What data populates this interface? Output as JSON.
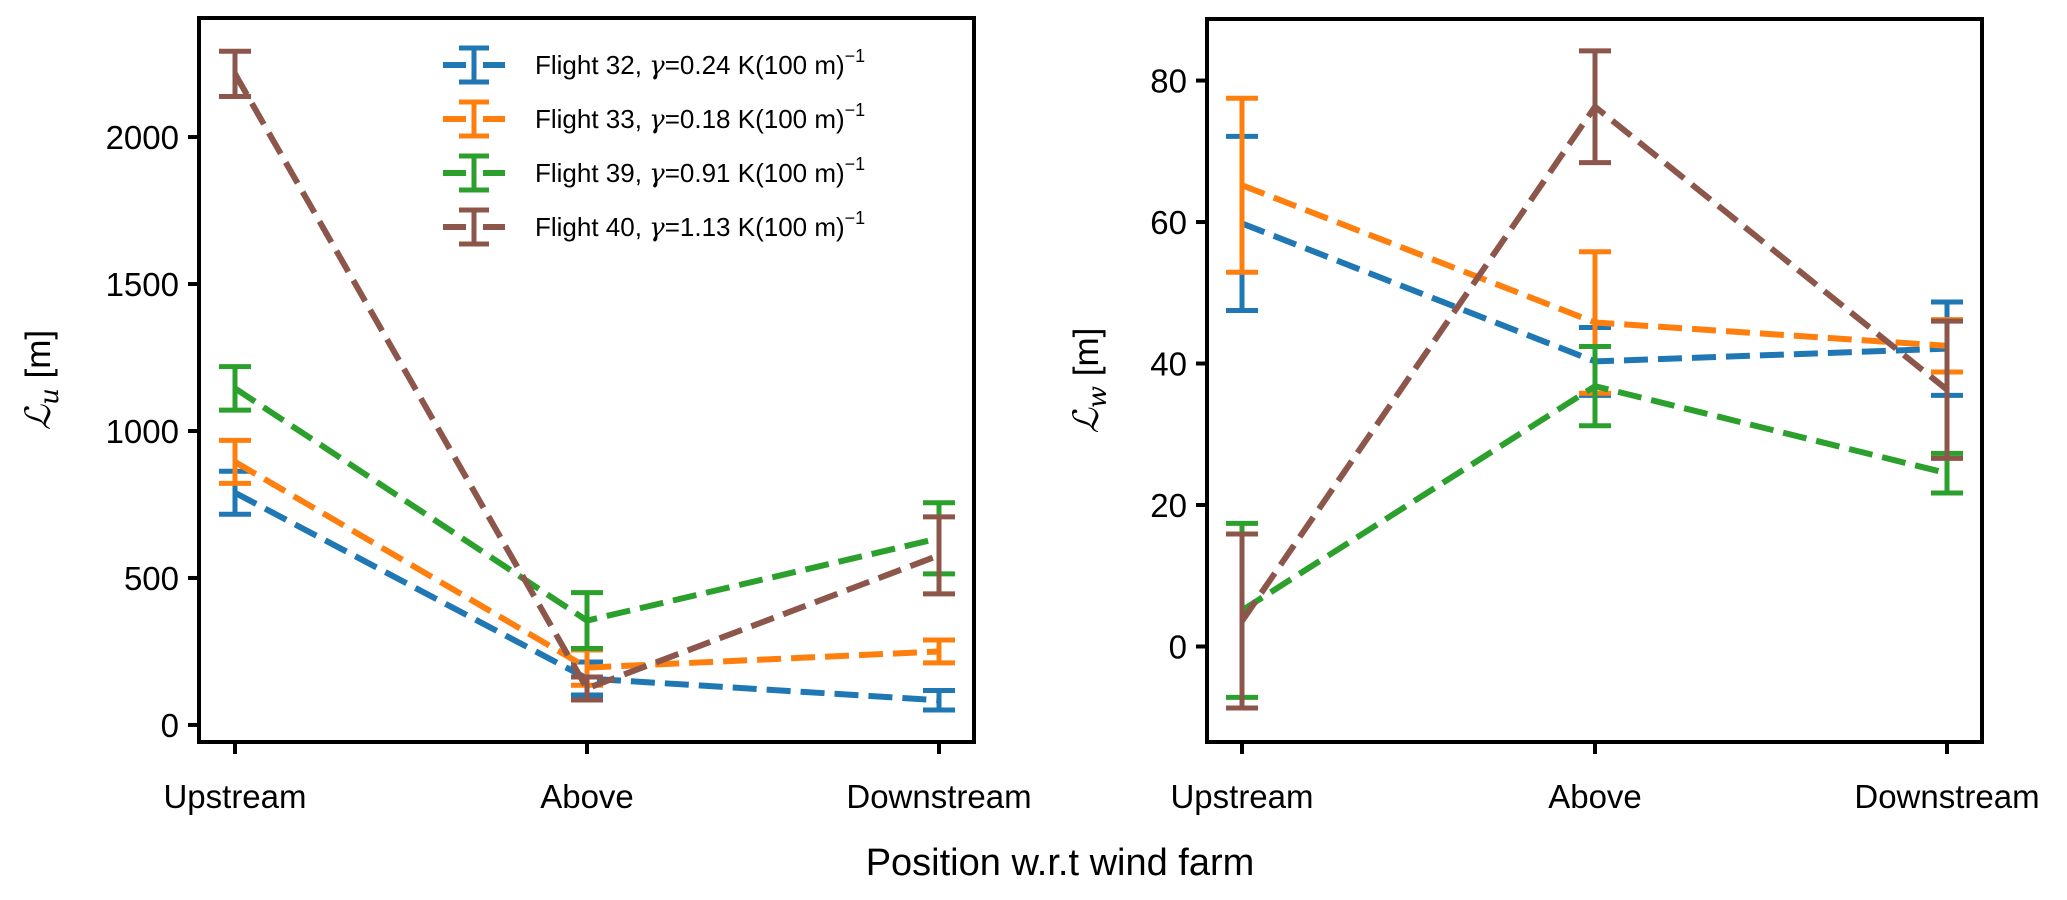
{
  "chart_data": [
    {
      "type": "line",
      "panel": "left",
      "ylabel_symbol": "ℒ",
      "ylabel_sub": "u",
      "ylabel_unit": "[m]",
      "xlabel": "",
      "categories": [
        "Upstream",
        "Above",
        "Downstream"
      ],
      "ylim": [
        -58,
        2405
      ],
      "yticks": [
        0,
        500,
        1000,
        1500,
        2000
      ],
      "ytick_labels": [
        "0",
        "500",
        "1000",
        "1500",
        "2000"
      ],
      "grid": false,
      "legend": "top-right",
      "series": [
        {
          "name": "Flight 32",
          "gamma": "0.24",
          "color": "#1f77b4",
          "values": [
            790,
            158,
            84
          ],
          "errors": [
            73,
            56,
            33
          ]
        },
        {
          "name": "Flight 33",
          "gamma": "0.18",
          "color": "#ff7f0e",
          "values": [
            895,
            195,
            250
          ],
          "errors": [
            73,
            60,
            39
          ]
        },
        {
          "name": "Flight 39",
          "gamma": "0.91",
          "color": "#2ca02c",
          "values": [
            1145,
            355,
            635
          ],
          "errors": [
            74,
            95,
            121
          ]
        },
        {
          "name": "Flight 40",
          "gamma": "1.13",
          "color": "#8c564b",
          "values": [
            2215,
            124,
            577
          ],
          "errors": [
            77,
            39,
            131
          ]
        }
      ]
    },
    {
      "type": "line",
      "panel": "right",
      "ylabel_symbol": "ℒ",
      "ylabel_sub": "w",
      "ylabel_unit": "[m]",
      "xlabel": "",
      "categories": [
        "Upstream",
        "Above",
        "Downstream"
      ],
      "ylim": [
        -13.5,
        88.7
      ],
      "yticks": [
        0,
        20,
        40,
        60,
        80
      ],
      "ytick_labels": [
        "0",
        "20",
        "40",
        "60",
        "80"
      ],
      "grid": false,
      "legend": "none",
      "series": [
        {
          "name": "Flight 32",
          "color": "#1f77b4",
          "values": [
            59.8,
            40.3,
            42.1
          ],
          "errors": [
            12.3,
            4.8,
            6.6
          ]
        },
        {
          "name": "Flight 33",
          "color": "#ff7f0e",
          "values": [
            65.2,
            45.8,
            42.5
          ],
          "errors": [
            12.3,
            10.0,
            3.7
          ]
        },
        {
          "name": "Flight 39",
          "color": "#2ca02c",
          "values": [
            5.1,
            36.8,
            24.5
          ],
          "errors": [
            12.3,
            5.6,
            2.8
          ]
        },
        {
          "name": "Flight 40",
          "color": "#8c564b",
          "values": [
            3.6,
            76.3,
            36.3
          ],
          "errors": [
            12.3,
            7.9,
            9.7
          ]
        }
      ]
    }
  ],
  "legend": {
    "entries": [
      {
        "label": "Flight 32, ",
        "gamma_symbol": "γ",
        "gamma_value": "=0.24 K(100 m)",
        "sup": "−1",
        "color": "#1f77b4"
      },
      {
        "label": "Flight 33, ",
        "gamma_symbol": "γ",
        "gamma_value": "=0.18 K(100 m)",
        "sup": "−1",
        "color": "#ff7f0e"
      },
      {
        "label": "Flight 39, ",
        "gamma_symbol": "γ",
        "gamma_value": "=0.91 K(100 m)",
        "sup": "−1",
        "color": "#2ca02c"
      },
      {
        "label": "Flight 40, ",
        "gamma_symbol": "γ",
        "gamma_value": "=1.13 K(100 m)",
        "sup": "−1",
        "color": "#8c564b"
      }
    ]
  },
  "suptitle_x": "Position w.r.t wind farm"
}
